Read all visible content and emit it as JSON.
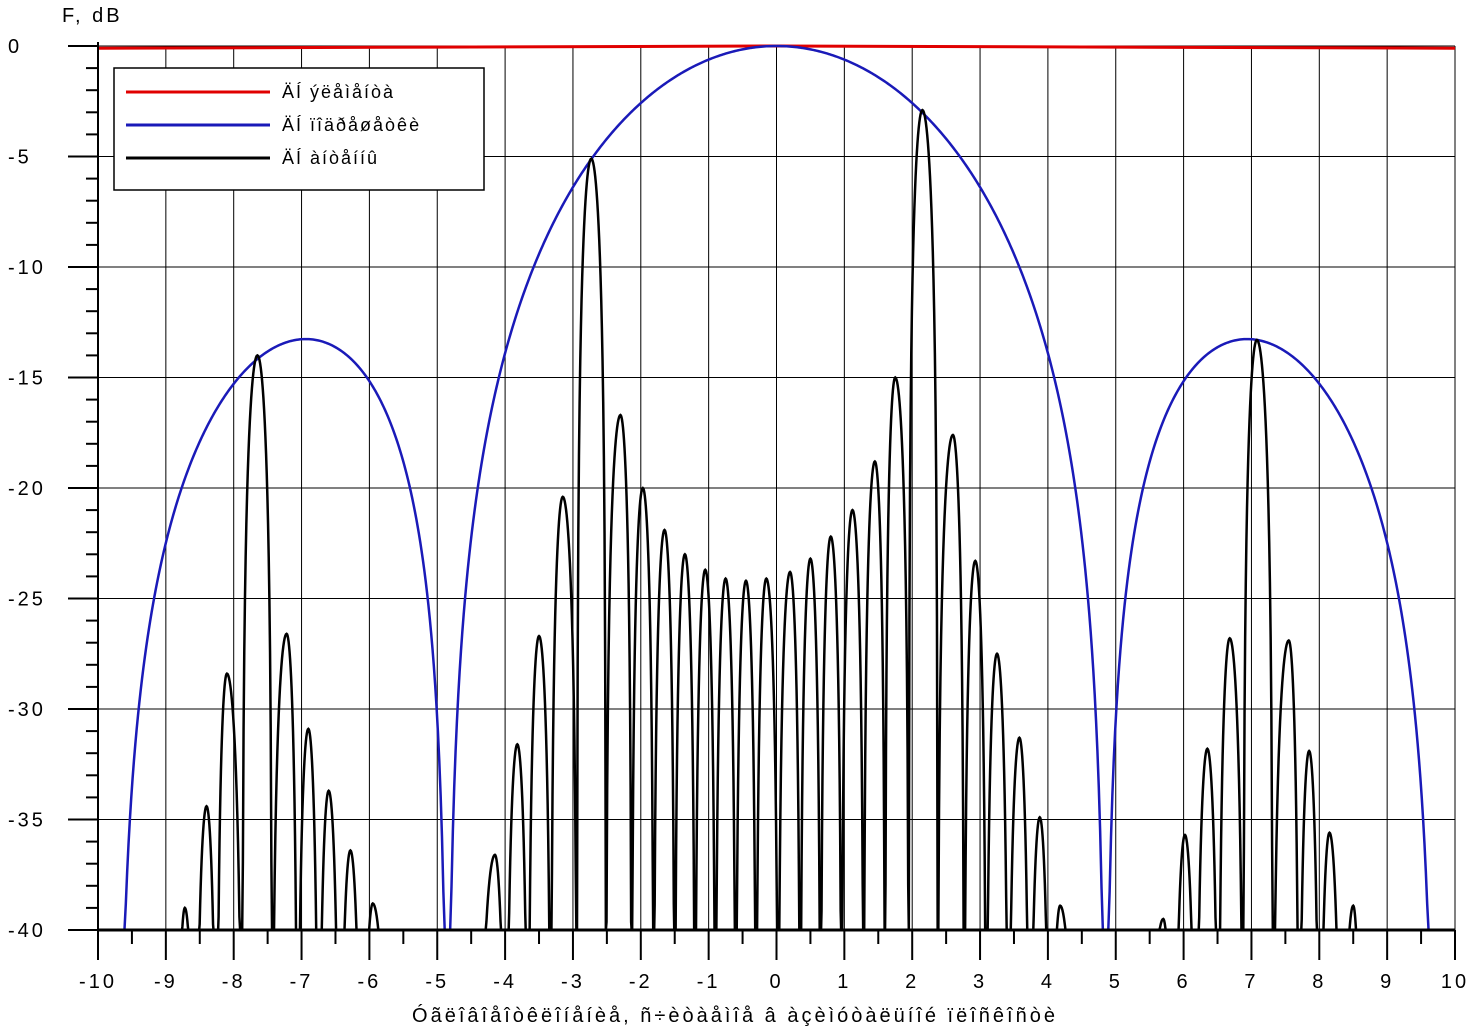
{
  "chart_data": {
    "type": "line",
    "title": "",
    "ylabel": "F, dB",
    "xlabel": "Óãëîâîåîòêëîíåíèå, ñ÷èòàåìîå â àçèìóòàëüíîé ïëîñêîñòè",
    "xlim": [
      -10,
      10
    ],
    "ylim": [
      -40,
      0
    ],
    "x_ticks": [
      -10,
      -9,
      -8,
      -7,
      -6,
      -5,
      -4,
      -3,
      -2,
      -1,
      0,
      1,
      2,
      3,
      4,
      5,
      6,
      7,
      8,
      9,
      10
    ],
    "y_ticks": [
      0,
      -5,
      -10,
      -15,
      -20,
      -25,
      -30,
      -35,
      -40
    ],
    "x_tick_labels": [
      "-10",
      "-9",
      "-8",
      "-7",
      "-6",
      "-5",
      "-4",
      "-3",
      "-2",
      "-1",
      "0",
      "1",
      "2",
      "3",
      "4",
      "5",
      "6",
      "7",
      "8",
      "9",
      "10"
    ],
    "y_tick_labels": [
      "0",
      "-5",
      "-10",
      "-15",
      "-20",
      "-25",
      "-30",
      "-35",
      "-40"
    ],
    "grid": true,
    "legend_position": "top-left",
    "series": [
      {
        "name": "ÄÍ ýëåìåíòà",
        "color": "#e00000",
        "style": "flat",
        "x": [
          -10,
          -5,
          0,
          5,
          10
        ],
        "y": [
          -0.1,
          -0.05,
          0,
          -0.05,
          -0.1
        ]
      },
      {
        "name": "ÄÍ ïîäðåøåòêè",
        "color": "#1a1ab8",
        "style": "subarray-envelope",
        "peaks": [
          -7,
          0,
          7
        ],
        "nulls": [
          -9.75,
          -4.85,
          4.85,
          9.75
        ],
        "peak_levels": [
          -13.3,
          0,
          -13.3
        ]
      },
      {
        "name": "ÄÍ àíòåííû",
        "color": "#000000",
        "style": "array-pattern",
        "lobe_peaks": [
          [
            -8.72,
            -39
          ],
          [
            -8.4,
            -34.4
          ],
          [
            -8.1,
            -28.4
          ],
          [
            -7.65,
            -14
          ],
          [
            -7.22,
            -26.6
          ],
          [
            -6.9,
            -30.9
          ],
          [
            -6.6,
            -33.7
          ],
          [
            -6.28,
            -36.4
          ],
          [
            -5.95,
            -38.8
          ],
          [
            -4.15,
            -36.6
          ],
          [
            -3.82,
            -31.6
          ],
          [
            -3.5,
            -26.7
          ],
          [
            -3.15,
            -20.4
          ],
          [
            -2.73,
            -5.1
          ],
          [
            -2.3,
            -16.7
          ],
          [
            -1.97,
            -20
          ],
          [
            -1.65,
            -21.9
          ],
          [
            -1.35,
            -23
          ],
          [
            -1.05,
            -23.7
          ],
          [
            -0.75,
            -24.1
          ],
          [
            -0.45,
            -24.2
          ],
          [
            -0.15,
            -24.1
          ],
          [
            0.2,
            -23.8
          ],
          [
            0.5,
            -23.2
          ],
          [
            0.8,
            -22.2
          ],
          [
            1.12,
            -21
          ],
          [
            1.45,
            -18.8
          ],
          [
            1.75,
            -15
          ],
          [
            2.15,
            -2.9
          ],
          [
            2.6,
            -17.6
          ],
          [
            2.93,
            -23.3
          ],
          [
            3.25,
            -27.5
          ],
          [
            3.58,
            -31.3
          ],
          [
            3.88,
            -34.9
          ],
          [
            4.18,
            -38.9
          ],
          [
            5.7,
            -39.5
          ],
          [
            6.02,
            -35.7
          ],
          [
            6.35,
            -31.8
          ],
          [
            6.68,
            -26.8
          ],
          [
            7.08,
            -13.3
          ],
          [
            7.55,
            -26.9
          ],
          [
            7.85,
            -31.9
          ],
          [
            8.15,
            -35.6
          ],
          [
            8.5,
            -38.9
          ]
        ]
      }
    ]
  }
}
